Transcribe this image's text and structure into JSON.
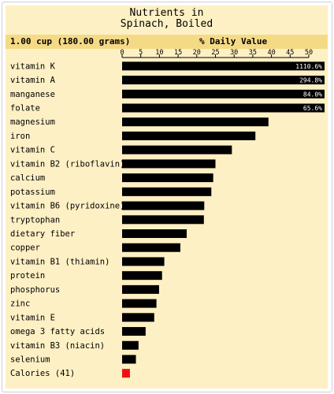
{
  "header": {
    "title_line1": "Nutrients in",
    "title_line2": "Spinach, Boiled",
    "serving": "1.00 cup (180.00 grams)",
    "column_label": "% Daily Value"
  },
  "colors": {
    "panel": "#fdf0c4",
    "header_bar": "#f5da86",
    "bar": "#000000",
    "calories_bar": "#ee1111"
  },
  "chart_data": {
    "type": "bar",
    "orientation": "horizontal",
    "title": "Nutrients in Spinach, Boiled",
    "xlabel": "% Daily Value",
    "xlim": [
      0,
      50
    ],
    "ticks": [
      0,
      5,
      10,
      15,
      20,
      25,
      30,
      35,
      40,
      45,
      50
    ],
    "categories": [
      "vitamin K",
      "vitamin A",
      "manganese",
      "folate",
      "magnesium",
      "iron",
      "vitamin C",
      "vitamin B2 (riboflavin)",
      "calcium",
      "potassium",
      "vitamin B6 (pyridoxine)",
      "tryptophan",
      "dietary fiber",
      "copper",
      "vitamin B1 (thiamin)",
      "protein",
      "phosphorus",
      "zinc",
      "vitamin E",
      "omega 3 fatty acids",
      "vitamin B3 (niacin)",
      "selenium",
      "Calories (41)"
    ],
    "values": [
      1110.6,
      294.8,
      84.0,
      65.6,
      39.2,
      35.7,
      29.4,
      25.0,
      24.4,
      23.9,
      22.0,
      21.9,
      17.3,
      15.6,
      11.3,
      10.7,
      9.9,
      9.2,
      8.6,
      6.3,
      4.4,
      3.7,
      2.1
    ],
    "value_labels": [
      "1110.6%",
      "294.8%",
      "84.0%",
      "65.6%",
      "",
      "",
      "",
      "",
      "",
      "",
      "",
      "",
      "",
      "",
      "",
      "",
      "",
      "",
      "",
      "",
      "",
      "",
      ""
    ],
    "highlight_category": "Calories (41)"
  }
}
